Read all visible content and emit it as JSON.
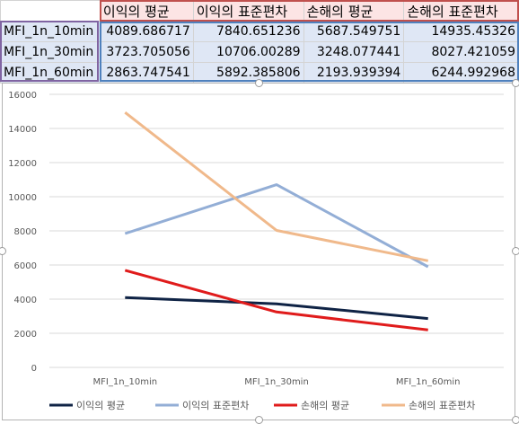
{
  "sheet": {
    "headers": [
      "이익의 평균",
      "이익의 표준편차",
      "손해의 평균",
      "손해의 표준편차"
    ],
    "rows": [
      {
        "label": "MFI_1n_10min",
        "values": [
          "4089.686717",
          "7840.651236",
          "5687.549751",
          "14935.45326"
        ]
      },
      {
        "label": "MFI_1n_30min",
        "values": [
          "3723.705056",
          "10706.00289",
          "3248.077441",
          "8027.421059"
        ]
      },
      {
        "label": "MFI_1n_60min",
        "values": [
          "2863.747541",
          "5892.385806",
          "2193.939394",
          "6244.992968"
        ]
      }
    ]
  },
  "chart_data": {
    "type": "line",
    "categories": [
      "MFI_1n_10min",
      "MFI_1n_30min",
      "MFI_1n_60min"
    ],
    "ylim": [
      0,
      16000
    ],
    "yticks": [
      "0",
      "2000",
      "4000",
      "6000",
      "8000",
      "10000",
      "12000",
      "14000",
      "16000"
    ],
    "grid": true,
    "legend_position": "bottom",
    "series": [
      {
        "name": "이익의 평균",
        "values": [
          4089.686717,
          3723.705056,
          2863.747541
        ],
        "color": "#0f2345"
      },
      {
        "name": "이익의 표준편차",
        "values": [
          7840.651236,
          10706.00289,
          5892.385806
        ],
        "color": "#93aed6"
      },
      {
        "name": "손해의 평균",
        "values": [
          5687.549751,
          3248.077441,
          2193.939394
        ],
        "color": "#e01b1b"
      },
      {
        "name": "손해의 표준편차",
        "values": [
          14935.45326,
          8027.421059,
          6244.992968
        ],
        "color": "#f0b98b"
      }
    ]
  }
}
